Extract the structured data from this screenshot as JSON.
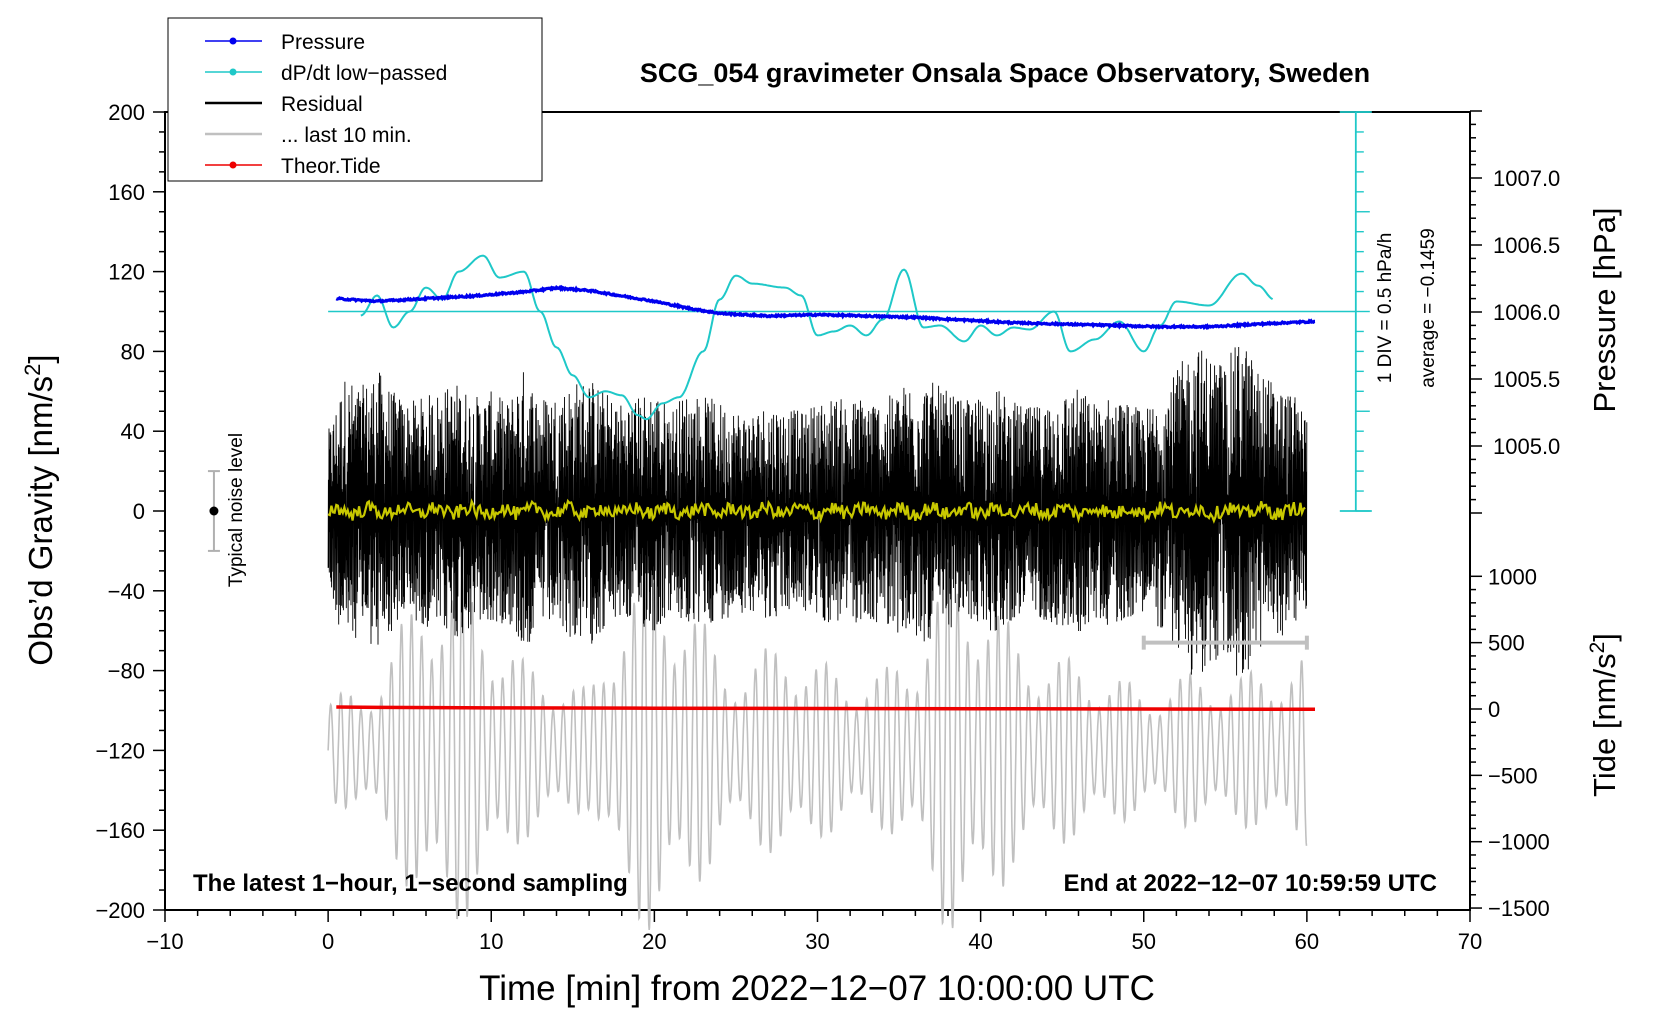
{
  "chart_data": {
    "type": "line",
    "title": "SCG_054 gravimeter Onsala Space Observatory, Sweden",
    "xlabel": "Time [min] from 2022−12−07 10:00:00 UTC",
    "xlim": [
      -10,
      70
    ],
    "xticks": [
      -10,
      0,
      10,
      20,
      30,
      40,
      50,
      60,
      70
    ],
    "xtick_labels": [
      "−10",
      "0",
      "10",
      "20",
      "30",
      "40",
      "50",
      "60",
      "70"
    ],
    "y_left": {
      "label_main": "Obs’d Gravity [nm/s",
      "label_sup": "2",
      "label_end": "]",
      "ylim": [
        -200,
        200
      ],
      "ticks": [
        200,
        160,
        120,
        80,
        40,
        0,
        -40,
        -80,
        -120,
        -160,
        -200
      ],
      "tick_labels": [
        "200",
        "160",
        "120",
        "80",
        "40",
        "0",
        "−40",
        "−80",
        "−120",
        "−160",
        "−200"
      ]
    },
    "y_pressure": {
      "label": "Pressure [hPa]",
      "ylim": [
        1004.5,
        1007.5
      ],
      "ticks": [
        1007.0,
        1006.5,
        1006.0,
        1005.5,
        1005.0
      ],
      "tick_labels": [
        "1007.0",
        "1006.5",
        "1006.0",
        "1005.5",
        "1005.0"
      ]
    },
    "y_tide": {
      "label_main": "Tide [nm/s",
      "label_sup": "2",
      "label_end": "]",
      "ylim": [
        -1500,
        1500
      ],
      "ticks": [
        1000,
        500,
        0,
        -500,
        -1000,
        -1500
      ],
      "tick_labels": [
        "1000",
        "500",
        "0",
        "−500",
        "−1000",
        "−1500"
      ]
    },
    "legend": {
      "placement": "top-left",
      "entries": [
        {
          "label": "Pressure",
          "color": "#0000ee",
          "marker": true
        },
        {
          "label": "dP/dt low−passed",
          "color": "#1fc8c8",
          "marker": true
        },
        {
          "label": "Residual",
          "color": "#000000",
          "marker": false
        },
        {
          "label": "... last 10 min.",
          "color": "#c0c0c0",
          "marker": false
        },
        {
          "label": "Theor.Tide",
          "color": "#ee0000",
          "marker": true
        }
      ]
    },
    "dpdt_scale": {
      "div_label": "1 DIV = 0.5 hPa/h",
      "average_label": "average = −0.1459",
      "x": 63,
      "g_top": 200,
      "g_bottom": 0,
      "baseline_g": 100
    },
    "noise_marker": {
      "label": "Typical noise level",
      "x": -7,
      "center_g": 0,
      "half_range_g": 20
    },
    "last10_bar": {
      "x_start": 50,
      "x_end": 60,
      "g": -66
    },
    "annotations": {
      "bottom_left": "The latest 1−hour, 1−second sampling",
      "bottom_right": "End at 2022−12−07 10:59:59 UTC"
    },
    "series": [
      {
        "name": "Pressure",
        "axis": "pressure",
        "color": "#0000ee",
        "x": [
          0.5,
          3,
          6,
          9,
          12,
          14,
          16,
          18,
          20,
          22,
          24,
          27,
          30,
          33,
          36,
          39,
          42,
          45,
          48,
          51,
          54,
          57,
          60.5
        ],
        "y": [
          1006.1,
          1006.08,
          1006.1,
          1006.12,
          1006.15,
          1006.18,
          1006.16,
          1006.12,
          1006.08,
          1006.03,
          1005.99,
          1005.97,
          1005.98,
          1005.97,
          1005.96,
          1005.94,
          1005.92,
          1005.91,
          1005.9,
          1005.89,
          1005.89,
          1005.91,
          1005.93
        ]
      },
      {
        "name": "dP/dt low−passed",
        "axis": "gravity_scale",
        "color": "#1fc8c8",
        "x": [
          2,
          3,
          4,
          5,
          6,
          7,
          8,
          9.5,
          10.5,
          12,
          13,
          14,
          15,
          16,
          17,
          18,
          19,
          19.5,
          20.5,
          21.5,
          23,
          24,
          25,
          26,
          28,
          29,
          30,
          31,
          32,
          33,
          34,
          35.3,
          36.5,
          37.5,
          39,
          40,
          41,
          42,
          43,
          44.5,
          45.5,
          47,
          48.5,
          50,
          51,
          52,
          54,
          56,
          57,
          58
        ],
        "y": [
          98,
          108,
          92,
          100,
          112,
          106,
          120,
          128,
          117,
          120,
          100,
          82,
          68,
          57,
          60,
          58,
          48,
          46,
          54,
          57,
          80,
          106,
          118,
          114,
          112,
          108,
          88,
          90,
          93,
          88,
          96,
          121,
          92,
          93,
          85,
          93,
          88,
          92,
          91,
          100,
          80,
          86,
          95,
          80,
          93,
          105,
          103,
          119,
          113,
          106
        ]
      },
      {
        "name": "Residual",
        "axis": "gravity",
        "color": "#000000",
        "x": [
          0,
          1,
          2,
          3,
          4,
          5,
          6,
          7,
          8,
          9,
          10,
          11,
          12,
          13,
          14,
          15,
          16,
          17,
          18,
          19,
          20,
          21,
          22,
          23,
          24,
          25,
          26,
          27,
          28,
          29,
          30,
          31,
          32,
          33,
          34,
          35,
          36,
          37,
          38,
          39,
          40,
          41,
          42,
          43,
          44,
          45,
          46,
          47,
          48,
          49,
          50,
          51,
          52,
          53,
          54,
          55,
          56,
          57,
          58,
          59,
          60
        ],
        "envelope": [
          40,
          68,
          62,
          72,
          60,
          55,
          58,
          62,
          65,
          58,
          60,
          55,
          72,
          58,
          60,
          65,
          68,
          60,
          55,
          58,
          62,
          52,
          60,
          58,
          55,
          52,
          50,
          55,
          52,
          50,
          55,
          58,
          55,
          60,
          55,
          62,
          68,
          65,
          60,
          55,
          58,
          62,
          55,
          52,
          55,
          60,
          62,
          55,
          58,
          55,
          50,
          60,
          70,
          85,
          80,
          75,
          88,
          72,
          65,
          60,
          50
        ]
      },
      {
        "name": "... last 10 min.",
        "axis": "gravity",
        "color": "#c0c0c0",
        "x": [
          0,
          2,
          4,
          6,
          8,
          10,
          12,
          14,
          16,
          18,
          20,
          22,
          24,
          26,
          28,
          30,
          32,
          34,
          36,
          38,
          40,
          42,
          44,
          46,
          48,
          50,
          52,
          54,
          56,
          58,
          60
        ],
        "envelope": [
          28,
          30,
          55,
          90,
          90,
          70,
          45,
          40,
          30,
          80,
          95,
          80,
          50,
          45,
          60,
          45,
          40,
          40,
          55,
          95,
          90,
          60,
          50,
          45,
          40,
          30,
          38,
          40,
          38,
          45,
          48
        ]
      },
      {
        "name": "Yellow smoothed residual",
        "axis": "gravity",
        "color": "#c8c800",
        "x": [
          0,
          60
        ],
        "y": [
          0,
          0
        ]
      },
      {
        "name": "Theor.Tide",
        "axis": "tide",
        "color": "#ee0000",
        "x": [
          0.5,
          3,
          10,
          20,
          30,
          40,
          50,
          60.5
        ],
        "y": [
          15,
          12,
          8,
          6,
          4,
          2,
          0,
          -2
        ]
      }
    ]
  }
}
